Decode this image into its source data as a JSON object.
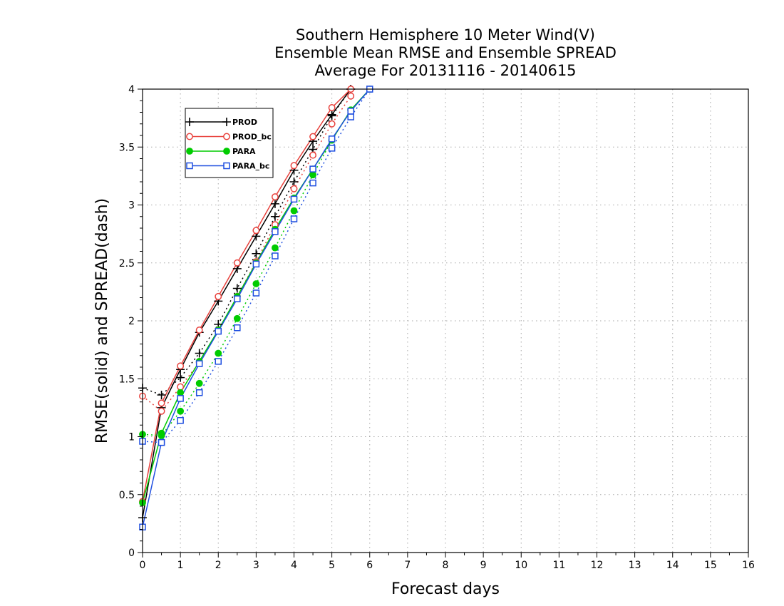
{
  "chart_data": {
    "type": "line",
    "title": [
      "Southern Hemisphere 10 Meter Wind(V)",
      "Ensemble Mean RMSE and Ensemble SPREAD",
      "Average For 20131116 - 20140615"
    ],
    "xlabel": "Forecast days",
    "ylabel": "RMSE(solid) and SPREAD(dash)",
    "xlim": [
      0,
      16
    ],
    "ylim": [
      0,
      4
    ],
    "xticks": [
      0,
      1,
      2,
      3,
      4,
      5,
      6,
      7,
      8,
      9,
      10,
      11,
      12,
      13,
      14,
      15,
      16
    ],
    "yticks": [
      0,
      0.5,
      1,
      1.5,
      2,
      2.5,
      3,
      3.5,
      4
    ],
    "ytick_labels": [
      "0",
      "0.5",
      "1",
      "1.5",
      "2",
      "2.5",
      "3",
      "3.5",
      "4"
    ],
    "grid": true,
    "legend_position": "top-left",
    "x": [
      0,
      0.5,
      1,
      1.5,
      2,
      2.5,
      3,
      3.5,
      4,
      4.5,
      5,
      5.5,
      6
    ],
    "series": [
      {
        "name": "PROD",
        "color": "#000000",
        "marker": "plus",
        "rmse": [
          0.3,
          1.25,
          1.58,
          1.9,
          2.17,
          2.45,
          2.73,
          3.01,
          3.3,
          3.55,
          3.78,
          4.0,
          null
        ],
        "spread": [
          1.42,
          1.36,
          1.51,
          1.72,
          1.97,
          2.28,
          2.58,
          2.9,
          3.2,
          3.48,
          3.77,
          4.0,
          null
        ]
      },
      {
        "name": "PROD_bc",
        "color": "#e8413c",
        "marker": "open-circle",
        "rmse": [
          0.44,
          1.29,
          1.61,
          1.92,
          2.21,
          2.5,
          2.78,
          3.07,
          3.34,
          3.59,
          3.84,
          4.0,
          null
        ],
        "spread": [
          1.35,
          1.22,
          1.43,
          1.64,
          1.92,
          2.21,
          2.51,
          2.83,
          3.14,
          3.43,
          3.7,
          3.94,
          null
        ]
      },
      {
        "name": "PARA",
        "color": "#00cc00",
        "marker": "filled-circle",
        "rmse": [
          0.43,
          1.03,
          1.38,
          1.65,
          1.92,
          2.21,
          2.5,
          2.79,
          3.06,
          3.31,
          3.56,
          3.82,
          4.0
        ],
        "spread": [
          1.02,
          1.01,
          1.22,
          1.46,
          1.72,
          2.02,
          2.32,
          2.63,
          2.95,
          3.26,
          3.56,
          3.82,
          4.0
        ]
      },
      {
        "name": "PARA_bc",
        "color": "#1f4fe0",
        "marker": "open-square",
        "rmse": [
          0.22,
          0.95,
          1.33,
          1.63,
          1.91,
          2.19,
          2.49,
          2.77,
          3.05,
          3.31,
          3.57,
          3.81,
          4.0
        ],
        "spread": [
          0.96,
          0.95,
          1.14,
          1.38,
          1.65,
          1.94,
          2.24,
          2.56,
          2.88,
          3.19,
          3.49,
          3.76,
          4.0
        ]
      }
    ]
  }
}
